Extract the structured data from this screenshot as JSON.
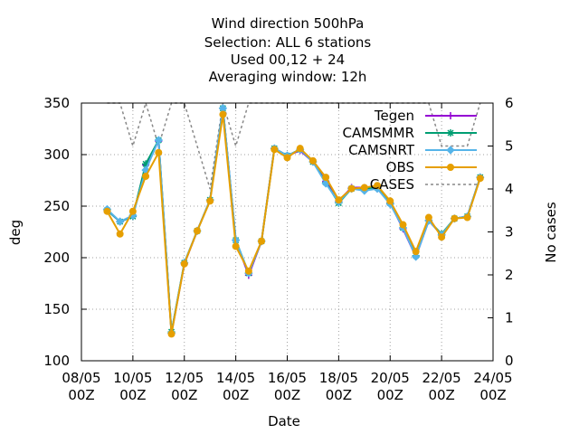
{
  "chart_data": {
    "type": "line",
    "title_lines": [
      "Wind direction 500hPa",
      "Selection: ALL      6 stations",
      "Used  00,12  + 24",
      "Averaging window: 12h"
    ],
    "xlabel": "Date",
    "ylabel": "deg",
    "y2label": "No cases",
    "xlim": [
      0,
      16
    ],
    "ylim": [
      100,
      350
    ],
    "y2lim": [
      0,
      6
    ],
    "x_ticks": [
      {
        "x": 0,
        "line1": "08/05",
        "line2": "00Z"
      },
      {
        "x": 2,
        "line1": "10/05",
        "line2": "00Z"
      },
      {
        "x": 4,
        "line1": "12/05",
        "line2": "00Z"
      },
      {
        "x": 6,
        "line1": "14/05",
        "line2": "00Z"
      },
      {
        "x": 8,
        "line1": "16/05",
        "line2": "00Z"
      },
      {
        "x": 10,
        "line1": "18/05",
        "line2": "00Z"
      },
      {
        "x": 12,
        "line1": "20/05",
        "line2": "00Z"
      },
      {
        "x": 14,
        "line1": "22/05",
        "line2": "00Z"
      },
      {
        "x": 16,
        "line1": "24/05",
        "line2": "00Z"
      }
    ],
    "y_ticks": [
      100,
      150,
      200,
      250,
      300,
      350
    ],
    "y2_ticks": [
      0,
      1,
      2,
      3,
      4,
      5,
      6
    ],
    "grid": true,
    "legend_position": "top-right",
    "series": [
      {
        "name": "Tegen",
        "color": "#9400d3",
        "marker": "plus",
        "x": [
          1,
          1.5,
          2,
          2.5,
          3,
          3.5,
          4,
          4.5,
          5,
          5.5,
          6,
          6.5,
          7,
          7.5,
          8,
          8.5,
          9,
          9.5,
          10,
          10.5,
          11,
          11.5,
          12,
          12.5,
          13,
          13.5,
          14,
          14.5,
          15,
          15.5
        ],
        "y": [
          246,
          235,
          240,
          290,
          313,
          127,
          194,
          226,
          256,
          345,
          217,
          183,
          216,
          306,
          299,
          304,
          293,
          274,
          255,
          268,
          268,
          267,
          253,
          228,
          201,
          236,
          222,
          238,
          240,
          278
        ]
      },
      {
        "name": "CAMSMMR",
        "color": "#009e73",
        "marker": "star",
        "x": [
          1,
          1.5,
          2,
          2.5,
          3,
          3.5,
          4,
          4.5,
          5,
          5.5,
          6,
          6.5,
          7,
          7.5,
          8,
          8.5,
          9,
          9.5,
          10,
          10.5,
          11,
          11.5,
          12,
          12.5,
          13,
          13.5,
          14,
          14.5,
          15,
          15.5
        ],
        "y": [
          246,
          235,
          240,
          291,
          314,
          128,
          195,
          226,
          256,
          345,
          217,
          185,
          216,
          306,
          299,
          305,
          293,
          273,
          253,
          267,
          267,
          268,
          253,
          229,
          202,
          236,
          223,
          238,
          240,
          278
        ]
      },
      {
        "name": "CAMSNRT",
        "color": "#56b4e9",
        "marker": "diamond",
        "x": [
          1,
          1.5,
          2,
          2.5,
          3,
          3.5,
          4,
          4.5,
          5,
          5.5,
          6,
          6.5,
          7,
          7.5,
          8,
          8.5,
          9,
          9.5,
          10,
          10.5,
          11,
          11.5,
          12,
          12.5,
          13,
          13.5,
          14,
          14.5,
          15,
          15.5
        ],
        "y": [
          247,
          235,
          241,
          285,
          314,
          127,
          195,
          226,
          256,
          345,
          217,
          185,
          216,
          306,
          299,
          305,
          293,
          272,
          254,
          267,
          265,
          267,
          252,
          229,
          201,
          236,
          222,
          238,
          240,
          278
        ]
      },
      {
        "name": "OBS",
        "color": "#e69f00",
        "marker": "circle",
        "x": [
          1,
          1.5,
          2,
          2.5,
          3,
          3.5,
          4,
          4.5,
          5,
          5.5,
          6,
          6.5,
          7,
          7.5,
          8,
          8.5,
          9,
          9.5,
          10,
          10.5,
          11,
          11.5,
          12,
          12.5,
          13,
          13.5,
          14,
          14.5,
          15,
          15.5
        ],
        "y": [
          245,
          223,
          245,
          279,
          302,
          126,
          194,
          226,
          255,
          339,
          211,
          187,
          216,
          305,
          297,
          306,
          294,
          278,
          256,
          267,
          268,
          270,
          255,
          232,
          206,
          239,
          220,
          238,
          239,
          277
        ]
      }
    ],
    "cases_series": {
      "name": "CASES",
      "color": "#888888",
      "axis": "y2",
      "x": [
        1,
        1.5,
        2,
        2.5,
        3,
        3.5,
        4,
        4.5,
        5,
        5.5,
        6,
        6.5,
        7,
        7.5,
        8,
        8.5,
        9,
        9.5,
        10,
        10.5,
        11,
        11.5,
        12,
        12.5,
        13,
        13.5,
        14,
        14.5,
        15,
        15.5
      ],
      "y": [
        6,
        6,
        5,
        6,
        5,
        6,
        6,
        5,
        4,
        6,
        5,
        6,
        6,
        6,
        6,
        6,
        6,
        6,
        6,
        6,
        6,
        6,
        6,
        6,
        6,
        6,
        5,
        5,
        5,
        6
      ]
    }
  }
}
